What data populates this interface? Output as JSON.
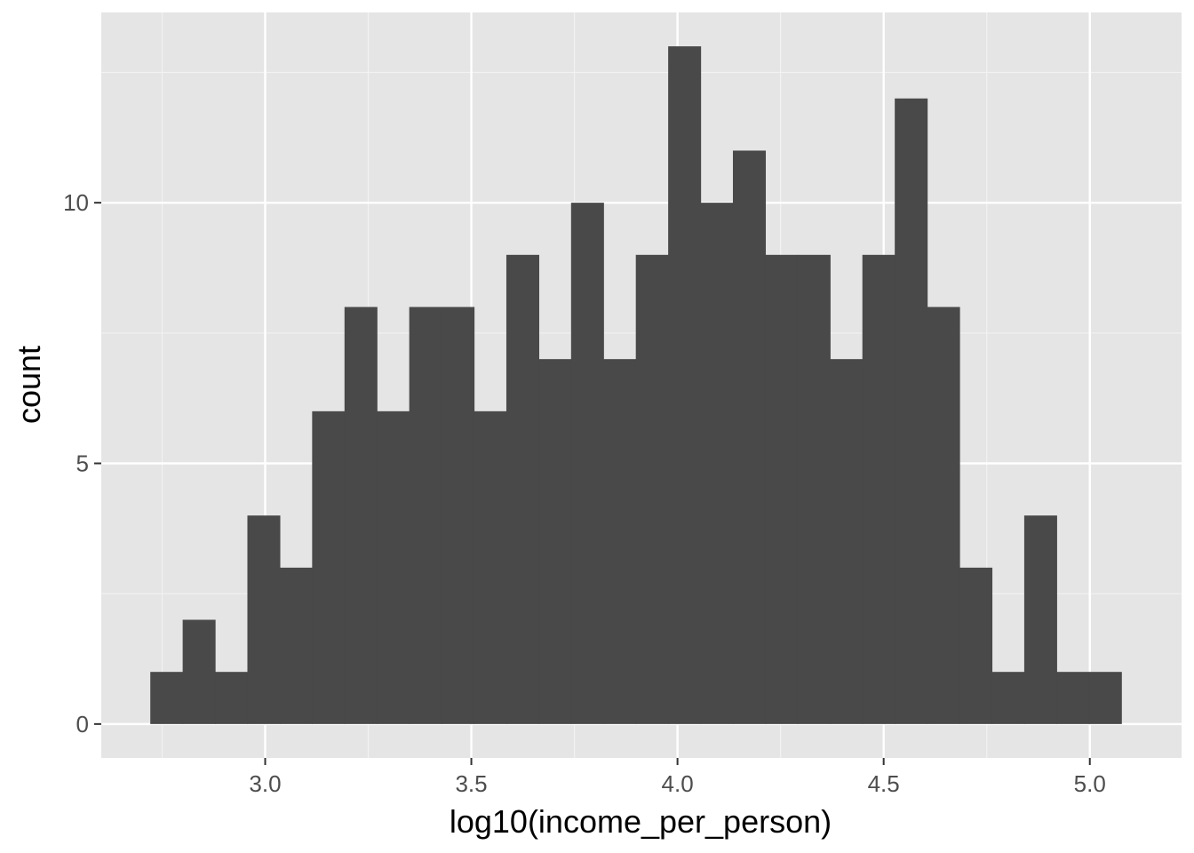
{
  "chart_data": {
    "type": "bar",
    "subtype": "histogram",
    "title": "",
    "xlabel": "log10(income_per_person)",
    "ylabel": "count",
    "bin_width": 0.0785,
    "bin_start": 2.7214,
    "counts": [
      1,
      2,
      1,
      4,
      3,
      6,
      8,
      6,
      8,
      8,
      6,
      9,
      7,
      10,
      7,
      9,
      13,
      10,
      11,
      9,
      9,
      7,
      9,
      12,
      8,
      3,
      1,
      4,
      1,
      1
    ],
    "xlim": [
      2.6025,
      5.2225
    ],
    "ylim": [
      -0.65,
      13.65
    ],
    "x_ticks": [
      "3.0",
      "3.5",
      "4.0",
      "4.5",
      "5.0"
    ],
    "x_tick_values": [
      3.0,
      3.5,
      4.0,
      4.5,
      5.0
    ],
    "y_ticks": [
      "0",
      "5",
      "10"
    ],
    "y_tick_values": [
      0,
      5,
      10
    ],
    "grid": true,
    "legend": "none",
    "colors": {
      "panel_background": "#e5e5e5",
      "grid_major": "#ffffff",
      "grid_minor": "#f2f2f2",
      "bar_fill": "#494949",
      "tick_text": "#4d4d4d",
      "axis_ticks": "#333333",
      "title_text": "#000000"
    }
  }
}
